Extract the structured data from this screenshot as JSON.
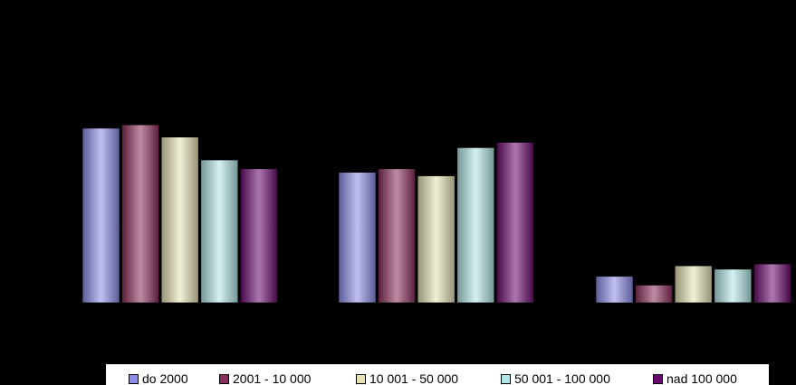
{
  "chart_data": {
    "type": "bar",
    "title": "",
    "xlabel": "",
    "ylabel": "",
    "grid": false,
    "legend_position": "bottom",
    "ylim": [
      0,
      100
    ],
    "categories": [
      "",
      "",
      ""
    ],
    "series": [
      {
        "name": "do 2000",
        "color": "#8c8ce8",
        "values": [
          99,
          74,
          15
        ]
      },
      {
        "name": "2001 - 10 000",
        "color": "#8a2d5a",
        "values": [
          101,
          76,
          10
        ]
      },
      {
        "name": "10 001 - 50 000",
        "color": "#e6e2b4",
        "values": [
          94,
          72,
          21
        ]
      },
      {
        "name": "50 001 - 100 000",
        "color": "#b2e6e6",
        "values": [
          81,
          88,
          19
        ]
      },
      {
        "name": "nad 100 000",
        "color": "#6a0a6e",
        "values": [
          76,
          91,
          22
        ]
      }
    ]
  }
}
